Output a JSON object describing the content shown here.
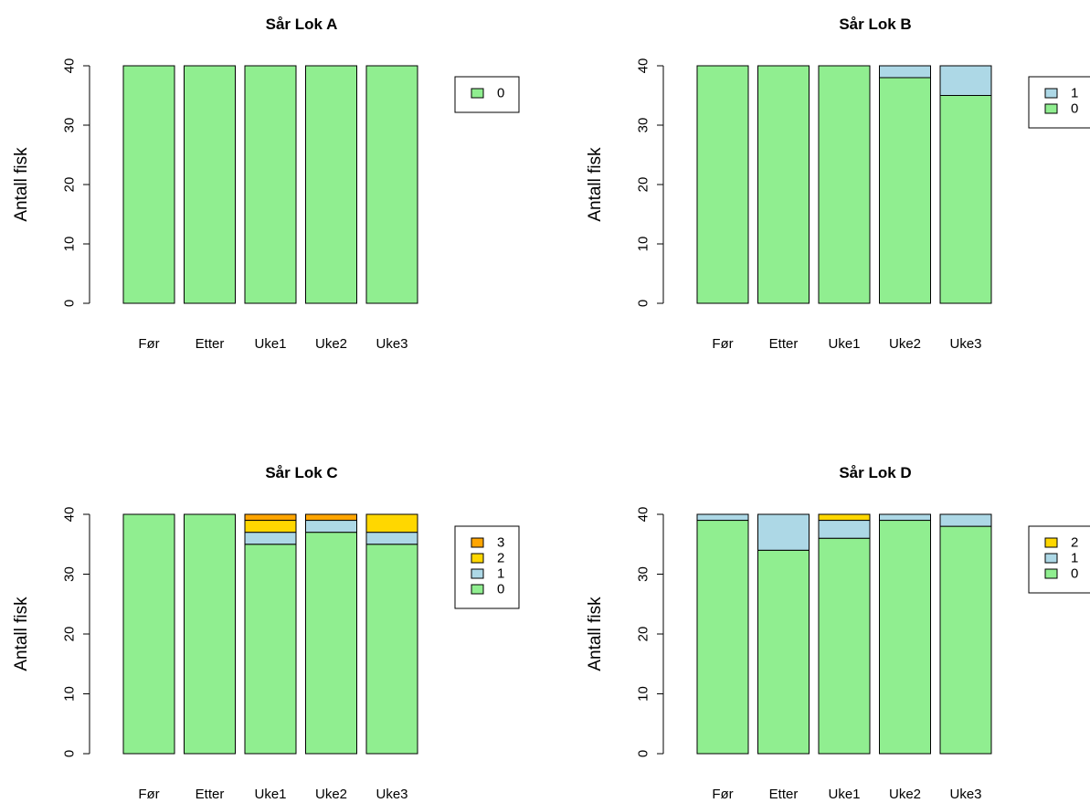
{
  "colors": {
    "0": "#90EE90",
    "1": "#ADD8E6",
    "2": "#FFD700",
    "3": "#FFA500"
  },
  "chart_data": [
    {
      "type": "bar",
      "stacked": true,
      "title": "Sår Lok A",
      "ylabel": "Antall fisk",
      "xlabel": "",
      "ylim": [
        0,
        40
      ],
      "yticks": [
        "0",
        "10",
        "20",
        "30",
        "40"
      ],
      "categories": [
        "Før",
        "Etter",
        "Uke1",
        "Uke2",
        "Uke3"
      ],
      "series": [
        {
          "name": "0",
          "values": [
            40,
            40,
            40,
            40,
            40
          ]
        }
      ],
      "legend": {
        "position": "right",
        "order": [
          "0"
        ]
      }
    },
    {
      "type": "bar",
      "stacked": true,
      "title": "Sår Lok B",
      "ylabel": "Antall fisk",
      "xlabel": "",
      "ylim": [
        0,
        40
      ],
      "yticks": [
        "0",
        "10",
        "20",
        "30",
        "40"
      ],
      "categories": [
        "Før",
        "Etter",
        "Uke1",
        "Uke2",
        "Uke3"
      ],
      "series": [
        {
          "name": "0",
          "values": [
            40,
            40,
            40,
            38,
            35
          ]
        },
        {
          "name": "1",
          "values": [
            0,
            0,
            0,
            2,
            5
          ]
        }
      ],
      "legend": {
        "position": "right",
        "order": [
          "1",
          "0"
        ]
      }
    },
    {
      "type": "bar",
      "stacked": true,
      "title": "Sår Lok C",
      "ylabel": "Antall fisk",
      "xlabel": "",
      "ylim": [
        0,
        40
      ],
      "yticks": [
        "0",
        "10",
        "20",
        "30",
        "40"
      ],
      "categories": [
        "Før",
        "Etter",
        "Uke1",
        "Uke2",
        "Uke3"
      ],
      "series": [
        {
          "name": "0",
          "values": [
            40,
            40,
            35,
            37,
            35
          ]
        },
        {
          "name": "1",
          "values": [
            0,
            0,
            2,
            2,
            2
          ]
        },
        {
          "name": "2",
          "values": [
            0,
            0,
            2,
            0,
            3
          ]
        },
        {
          "name": "3",
          "values": [
            0,
            0,
            1,
            1,
            0
          ]
        }
      ],
      "legend": {
        "position": "right",
        "order": [
          "3",
          "2",
          "1",
          "0"
        ]
      }
    },
    {
      "type": "bar",
      "stacked": true,
      "title": "Sår Lok D",
      "ylabel": "Antall fisk",
      "xlabel": "",
      "ylim": [
        0,
        40
      ],
      "yticks": [
        "0",
        "10",
        "20",
        "30",
        "40"
      ],
      "categories": [
        "Før",
        "Etter",
        "Uke1",
        "Uke2",
        "Uke3"
      ],
      "series": [
        {
          "name": "0",
          "values": [
            39,
            34,
            36,
            39,
            38
          ]
        },
        {
          "name": "1",
          "values": [
            1,
            6,
            3,
            1,
            2
          ]
        },
        {
          "name": "2",
          "values": [
            0,
            0,
            1,
            0,
            0
          ]
        }
      ],
      "legend": {
        "position": "right",
        "order": [
          "2",
          "1",
          "0"
        ]
      }
    }
  ]
}
